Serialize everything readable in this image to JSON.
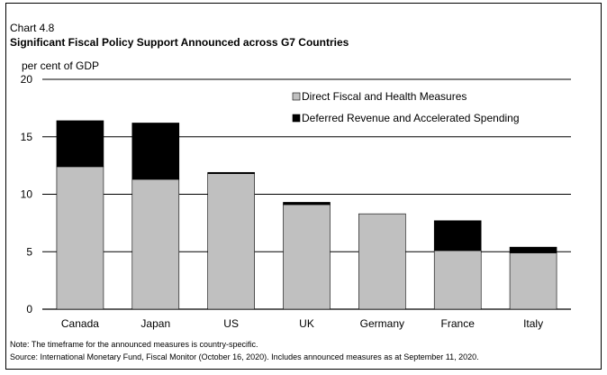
{
  "chart_label": "Chart 4.8",
  "chart_title": "Significant Fiscal Policy Support Announced across G7 Countries",
  "note": "Note: The timeframe for the announced measures is country-specific.",
  "source": "Source: International Monetary Fund, Fiscal Monitor (October 16, 2020). Includes announced measures as at September 11, 2020.",
  "colors": {
    "direct": "#c0c0c0",
    "deferred": "#000000",
    "grid": "#000000"
  },
  "chart_data": {
    "type": "bar",
    "stacked": true,
    "title": "Significant Fiscal Policy Support Announced across G7 Countries",
    "ylabel": "per cent of GDP",
    "xlabel": "",
    "ylim": [
      0,
      20
    ],
    "yticks": [
      0,
      5,
      10,
      15,
      20
    ],
    "grid": true,
    "legend_position": "top-right",
    "categories": [
      "Canada",
      "Japan",
      "US",
      "UK",
      "Germany",
      "France",
      "Italy"
    ],
    "series": [
      {
        "name": "Direct Fiscal and Health Measures",
        "color": "#c0c0c0",
        "values": [
          12.4,
          11.3,
          11.8,
          9.1,
          8.3,
          5.1,
          4.9
        ]
      },
      {
        "name": "Deferred Revenue and Accelerated Spending",
        "color": "#000000",
        "values": [
          4.0,
          4.9,
          0.1,
          0.2,
          0.0,
          2.6,
          0.5
        ]
      }
    ]
  }
}
